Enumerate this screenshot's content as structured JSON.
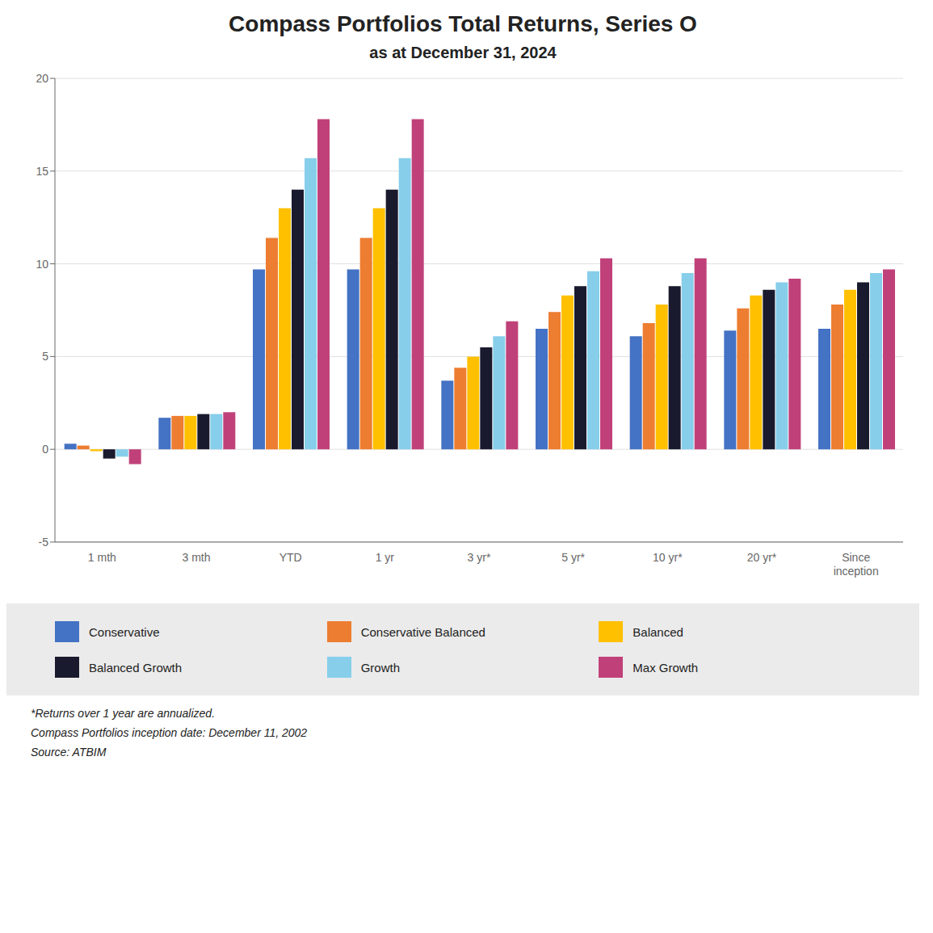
{
  "chart_data": {
    "type": "bar",
    "title": "Compass Portfolios Total Returns, Series O",
    "subtitle": "as at December 31, 2024",
    "categories": [
      "1 mth",
      "3 mth",
      "YTD",
      "1 yr",
      "3 yr*",
      "5 yr*",
      "10 yr*",
      "20 yr*",
      "Since\ninception"
    ],
    "series": [
      {
        "name": "Conservative",
        "color": "#4472C4",
        "values": [
          0.3,
          1.7,
          9.7,
          9.7,
          3.7,
          6.5,
          6.1,
          6.4,
          6.5
        ]
      },
      {
        "name": "Conservative Balanced",
        "color": "#ED7D31",
        "values": [
          0.2,
          1.8,
          11.4,
          11.4,
          4.4,
          7.4,
          6.8,
          7.6,
          7.8
        ]
      },
      {
        "name": "Balanced",
        "color": "#FFC000",
        "values": [
          -0.1,
          1.8,
          13.0,
          13.0,
          5.0,
          8.3,
          7.8,
          8.3,
          8.6
        ]
      },
      {
        "name": "Balanced Growth",
        "color": "#1A1A2E",
        "values": [
          -0.5,
          1.9,
          14.0,
          14.0,
          5.5,
          8.8,
          8.8,
          8.6,
          9.0
        ]
      },
      {
        "name": "Growth",
        "color": "#87CEEB",
        "values": [
          -0.4,
          1.9,
          15.7,
          15.7,
          6.1,
          9.6,
          9.5,
          9.0,
          9.5
        ]
      },
      {
        "name": "Max Growth",
        "color": "#C0417A",
        "values": [
          -0.8,
          2.0,
          17.8,
          17.8,
          6.9,
          10.3,
          10.3,
          9.2,
          9.7
        ]
      }
    ],
    "ylim": [
      -5,
      20
    ],
    "yticks": [
      -5,
      0,
      5,
      10,
      15,
      20
    ],
    "grid": true,
    "legend": "bottom",
    "annotations": [
      "*Returns over 1 year are annualized.",
      "Compass Portfolios inception date: December 11, 2002",
      "Source: ATBIM"
    ]
  }
}
